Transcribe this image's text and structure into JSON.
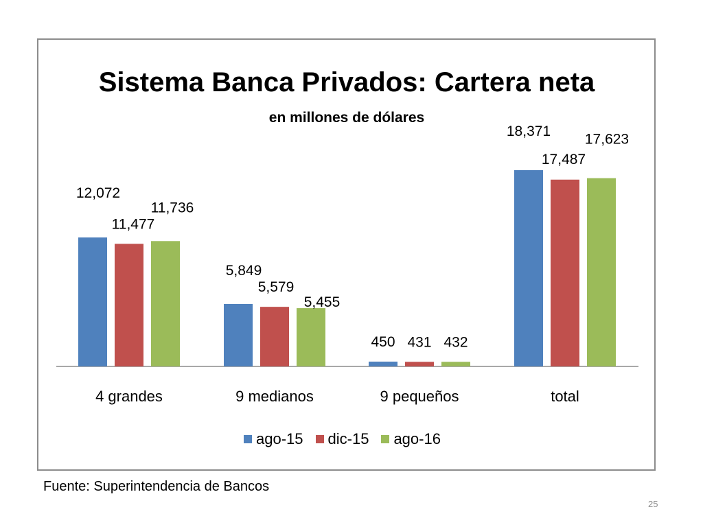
{
  "chart_data": {
    "type": "bar",
    "title": "Sistema Banca Privados: Cartera neta",
    "subtitle": "en millones de dólares",
    "categories": [
      "4 grandes",
      "9 medianos",
      "9 pequeños",
      "total"
    ],
    "series": [
      {
        "name": "ago-15",
        "color": "#4f81bd",
        "values": [
          12072,
          5849,
          450,
          18371
        ],
        "labels": [
          "12,072",
          "5,849",
          "450",
          "18,371"
        ]
      },
      {
        "name": "dic-15",
        "color": "#c0504d",
        "values": [
          11477,
          5579,
          431,
          17487
        ],
        "labels": [
          "11,477",
          "5,579",
          "431",
          "17,487"
        ]
      },
      {
        "name": "ago-16",
        "color": "#9bbb59",
        "values": [
          11736,
          5455,
          432,
          17623
        ],
        "labels": [
          "11,736",
          "5,455",
          "432",
          "17,623"
        ]
      }
    ],
    "ylim": [
      0,
      20000
    ],
    "grid": false,
    "legend": "bottom"
  },
  "footer": {
    "source": "Fuente: Superintendencia de Bancos",
    "page_number": "25"
  }
}
